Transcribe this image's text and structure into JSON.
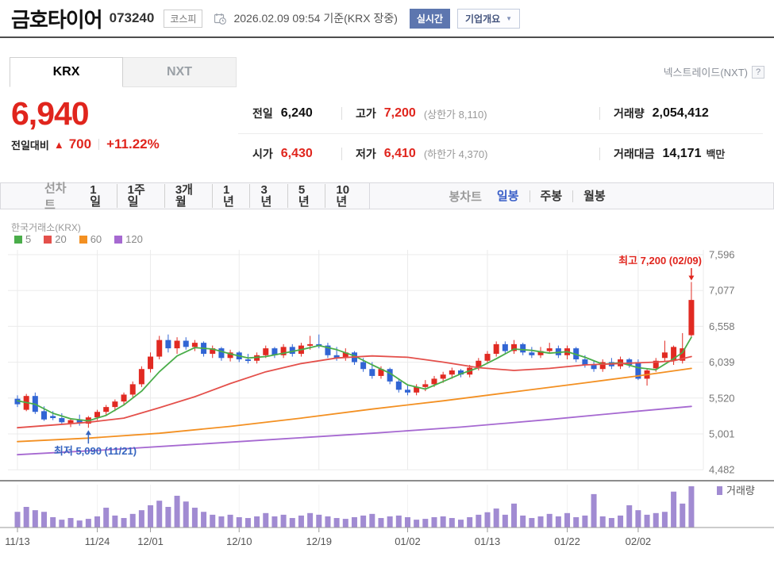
{
  "header": {
    "title": "금호타이어",
    "code": "073240",
    "market_badge": "코스피",
    "datetime": "2026.02.09 09:54 기준(KRX 장중)",
    "realtime_badge": "실시간",
    "company_overview": "기업개요",
    "caret": "▼"
  },
  "tabs": {
    "krx": "KRX",
    "nxt": "NXT",
    "nxt_info_label": "넥스트레이드(NXT)",
    "help": "?"
  },
  "price": {
    "current": "6,940",
    "change_label": "전일대비",
    "change_dir": "▲",
    "change_value": "700",
    "change_percent": "+11.22%"
  },
  "stats": {
    "rows": [
      [
        {
          "label": "전일",
          "value": "6,240"
        },
        {
          "label": "고가",
          "value": "7,200",
          "extra": "(상한가 8,110)"
        },
        {
          "label": "거래량",
          "value": "2,054,412"
        }
      ],
      [
        {
          "label": "시가",
          "value": "6,430"
        },
        {
          "label": "저가",
          "value": "6,410",
          "extra": "(하한가 4,370)"
        },
        {
          "label": "거래대금",
          "value": "14,171",
          "unit": "백만"
        }
      ]
    ]
  },
  "toolbar": {
    "line_label": "선차트",
    "line_items": [
      "1일",
      "1주일",
      "3개월",
      "1년",
      "3년",
      "5년",
      "10년"
    ],
    "candle_label": "봉차트",
    "candle_items": [
      "일봉",
      "주봉",
      "월봉"
    ],
    "active_candle": "일봉"
  },
  "chart_data": {
    "type": "candlestick+volume",
    "exchange_label": "한국거래소(KRX)",
    "volume_label": "거래량",
    "ma_legend": [
      {
        "period": "5",
        "color": "#4aad4a"
      },
      {
        "period": "20",
        "color": "#e4504b"
      },
      {
        "period": "60",
        "color": "#f39022"
      },
      {
        "period": "120",
        "color": "#a669d1"
      }
    ],
    "y_ticks": [
      7596,
      7077,
      6558,
      6039,
      5520,
      5001,
      4482
    ],
    "x_ticks": [
      {
        "label": "11/13",
        "bar": 0
      },
      {
        "label": "11/24",
        "bar": 9
      },
      {
        "label": "12/01",
        "bar": 15
      },
      {
        "label": "12/10",
        "bar": 25
      },
      {
        "label": "12/19",
        "bar": 34
      },
      {
        "label": "01/02",
        "bar": 44
      },
      {
        "label": "01/13",
        "bar": 53
      },
      {
        "label": "01/22",
        "bar": 62
      },
      {
        "label": "02/02",
        "bar": 70
      }
    ],
    "annotations": {
      "high": {
        "text": "최고 7,200 (02/09)",
        "bar": 76,
        "price": 7200,
        "color": "#e0251d"
      },
      "low": {
        "text": "최저 5,090 (11/21)",
        "bar": 8,
        "price": 5090,
        "color": "#3565c0"
      }
    },
    "colors": {
      "up": "#e12a22",
      "down": "#3165d4",
      "volume": "#a18bd2",
      "grid": "#ebebeb",
      "grid_vol": "#f2f2f2",
      "separator": "#8c8c8c",
      "axis_line": "#9a9a9a",
      "axis_text": "#777777",
      "date_text": "#555555"
    },
    "candles": [
      [
        5510,
        5560,
        5390,
        5430,
        0.38
      ],
      [
        5350,
        5580,
        5330,
        5550,
        0.5
      ],
      [
        5550,
        5600,
        5290,
        5320,
        0.42
      ],
      [
        5330,
        5400,
        5190,
        5210,
        0.38
      ],
      [
        5260,
        5330,
        5200,
        5230,
        0.25
      ],
      [
        5230,
        5300,
        5140,
        5170,
        0.19
      ],
      [
        5150,
        5230,
        5100,
        5200,
        0.23
      ],
      [
        5210,
        5280,
        5120,
        5160,
        0.17
      ],
      [
        5150,
        5260,
        5090,
        5240,
        0.21
      ],
      [
        5240,
        5350,
        5200,
        5320,
        0.27
      ],
      [
        5320,
        5420,
        5260,
        5390,
        0.48
      ],
      [
        5390,
        5500,
        5330,
        5470,
        0.29
      ],
      [
        5470,
        5600,
        5420,
        5570,
        0.23
      ],
      [
        5570,
        5760,
        5520,
        5720,
        0.33
      ],
      [
        5720,
        5980,
        5680,
        5940,
        0.42
      ],
      [
        5940,
        6180,
        5890,
        6120,
        0.54
      ],
      [
        6120,
        6420,
        6080,
        6360,
        0.65
      ],
      [
        6360,
        6440,
        6180,
        6240,
        0.5
      ],
      [
        6240,
        6400,
        6160,
        6350,
        0.77
      ],
      [
        6350,
        6400,
        6220,
        6260,
        0.63
      ],
      [
        6260,
        6360,
        6200,
        6320,
        0.48
      ],
      [
        6320,
        6340,
        6120,
        6160,
        0.38
      ],
      [
        6160,
        6280,
        6100,
        6240,
        0.31
      ],
      [
        6240,
        6260,
        6060,
        6100,
        0.27
      ],
      [
        6100,
        6220,
        6050,
        6180,
        0.31
      ],
      [
        6180,
        6200,
        6040,
        6080,
        0.25
      ],
      [
        6080,
        6160,
        6020,
        6060,
        0.23
      ],
      [
        6060,
        6180,
        6020,
        6140,
        0.27
      ],
      [
        6140,
        6280,
        6100,
        6240,
        0.35
      ],
      [
        6240,
        6260,
        6100,
        6140,
        0.27
      ],
      [
        6140,
        6300,
        6100,
        6260,
        0.31
      ],
      [
        6260,
        6300,
        6120,
        6160,
        0.23
      ],
      [
        6160,
        6320,
        6120,
        6280,
        0.29
      ],
      [
        6280,
        6420,
        6220,
        6300,
        0.35
      ],
      [
        6300,
        6440,
        6240,
        6280,
        0.31
      ],
      [
        6280,
        6320,
        6100,
        6140,
        0.27
      ],
      [
        6140,
        6260,
        6060,
        6100,
        0.23
      ],
      [
        6100,
        6240,
        6060,
        6180,
        0.21
      ],
      [
        6180,
        6200,
        6000,
        6040,
        0.25
      ],
      [
        6040,
        6100,
        5900,
        5940,
        0.29
      ],
      [
        5940,
        6040,
        5800,
        5840,
        0.33
      ],
      [
        5840,
        5980,
        5800,
        5940,
        0.23
      ],
      [
        5940,
        5960,
        5720,
        5760,
        0.27
      ],
      [
        5760,
        5800,
        5600,
        5640,
        0.29
      ],
      [
        5640,
        5720,
        5560,
        5600,
        0.25
      ],
      [
        5600,
        5720,
        5560,
        5680,
        0.19
      ],
      [
        5680,
        5780,
        5620,
        5720,
        0.21
      ],
      [
        5720,
        5840,
        5680,
        5800,
        0.25
      ],
      [
        5800,
        5900,
        5740,
        5860,
        0.27
      ],
      [
        5860,
        5960,
        5800,
        5920,
        0.23
      ],
      [
        5920,
        5940,
        5820,
        5860,
        0.19
      ],
      [
        5860,
        6000,
        5820,
        5960,
        0.25
      ],
      [
        5960,
        6100,
        5920,
        6060,
        0.31
      ],
      [
        6060,
        6200,
        6020,
        6160,
        0.37
      ],
      [
        6160,
        6340,
        6120,
        6300,
        0.46
      ],
      [
        6300,
        6340,
        6160,
        6200,
        0.31
      ],
      [
        6200,
        6360,
        6160,
        6300,
        0.58
      ],
      [
        6300,
        6320,
        6140,
        6180,
        0.29
      ],
      [
        6180,
        6260,
        6100,
        6140,
        0.23
      ],
      [
        6140,
        6260,
        6100,
        6200,
        0.27
      ],
      [
        6200,
        6320,
        6160,
        6240,
        0.33
      ],
      [
        6240,
        6280,
        6100,
        6140,
        0.27
      ],
      [
        6140,
        6280,
        6080,
        6240,
        0.35
      ],
      [
        6240,
        6260,
        6040,
        6080,
        0.25
      ],
      [
        6080,
        6140,
        5960,
        6000,
        0.29
      ],
      [
        6000,
        6060,
        5900,
        5940,
        0.81
      ],
      [
        5940,
        6080,
        5900,
        6040,
        0.27
      ],
      [
        6040,
        6100,
        5940,
        5980,
        0.23
      ],
      [
        5980,
        6120,
        5940,
        6080,
        0.29
      ],
      [
        6080,
        6100,
        5960,
        6000,
        0.54
      ],
      [
        6040,
        6080,
        5780,
        5800,
        0.42
      ],
      [
        5800,
        5950,
        5700,
        5920,
        0.31
      ],
      [
        5950,
        6100,
        5900,
        6060,
        0.35
      ],
      [
        6100,
        6350,
        6050,
        6180,
        0.38
      ],
      [
        6060,
        6280,
        6000,
        6260,
        0.87
      ],
      [
        6060,
        6460,
        6020,
        6240,
        0.58
      ],
      [
        6430,
        7200,
        6410,
        6940,
        1.0
      ]
    ],
    "ma_series": [
      {
        "period": "5",
        "color": "#4aad4a",
        "points": [
          [
            0,
            5480
          ],
          [
            2,
            5430
          ],
          [
            4,
            5300
          ],
          [
            6,
            5220
          ],
          [
            8,
            5190
          ],
          [
            10,
            5270
          ],
          [
            12,
            5420
          ],
          [
            14,
            5620
          ],
          [
            16,
            5900
          ],
          [
            18,
            6130
          ],
          [
            20,
            6250
          ],
          [
            22,
            6230
          ],
          [
            24,
            6160
          ],
          [
            26,
            6100
          ],
          [
            28,
            6120
          ],
          [
            30,
            6170
          ],
          [
            32,
            6220
          ],
          [
            34,
            6280
          ],
          [
            36,
            6220
          ],
          [
            38,
            6130
          ],
          [
            40,
            6000
          ],
          [
            42,
            5880
          ],
          [
            44,
            5710
          ],
          [
            46,
            5650
          ],
          [
            48,
            5760
          ],
          [
            50,
            5870
          ],
          [
            52,
            5960
          ],
          [
            54,
            6090
          ],
          [
            56,
            6230
          ],
          [
            58,
            6210
          ],
          [
            60,
            6170
          ],
          [
            62,
            6190
          ],
          [
            64,
            6110
          ],
          [
            66,
            6010
          ],
          [
            68,
            6030
          ],
          [
            70,
            5960
          ],
          [
            72,
            5930
          ],
          [
            74,
            6090
          ],
          [
            75,
            6180
          ],
          [
            76,
            6400
          ]
        ]
      },
      {
        "period": "20",
        "color": "#e4504b",
        "points": [
          [
            0,
            5090
          ],
          [
            4,
            5130
          ],
          [
            8,
            5170
          ],
          [
            12,
            5230
          ],
          [
            16,
            5380
          ],
          [
            20,
            5540
          ],
          [
            24,
            5730
          ],
          [
            28,
            5900
          ],
          [
            32,
            6020
          ],
          [
            36,
            6100
          ],
          [
            40,
            6130
          ],
          [
            44,
            6110
          ],
          [
            48,
            6040
          ],
          [
            52,
            5960
          ],
          [
            56,
            5920
          ],
          [
            60,
            5950
          ],
          [
            64,
            6000
          ],
          [
            68,
            6020
          ],
          [
            70,
            6030
          ],
          [
            72,
            6040
          ],
          [
            74,
            6060
          ],
          [
            76,
            6120
          ]
        ]
      },
      {
        "period": "60",
        "color": "#f39022",
        "points": [
          [
            0,
            4890
          ],
          [
            8,
            4940
          ],
          [
            16,
            5010
          ],
          [
            24,
            5110
          ],
          [
            32,
            5230
          ],
          [
            40,
            5360
          ],
          [
            48,
            5480
          ],
          [
            56,
            5610
          ],
          [
            64,
            5740
          ],
          [
            70,
            5840
          ],
          [
            76,
            5950
          ]
        ]
      },
      {
        "period": "120",
        "color": "#a669d1",
        "points": [
          [
            0,
            4700
          ],
          [
            10,
            4770
          ],
          [
            20,
            4850
          ],
          [
            30,
            4930
          ],
          [
            40,
            5010
          ],
          [
            50,
            5100
          ],
          [
            60,
            5210
          ],
          [
            70,
            5330
          ],
          [
            76,
            5400
          ]
        ]
      }
    ]
  }
}
